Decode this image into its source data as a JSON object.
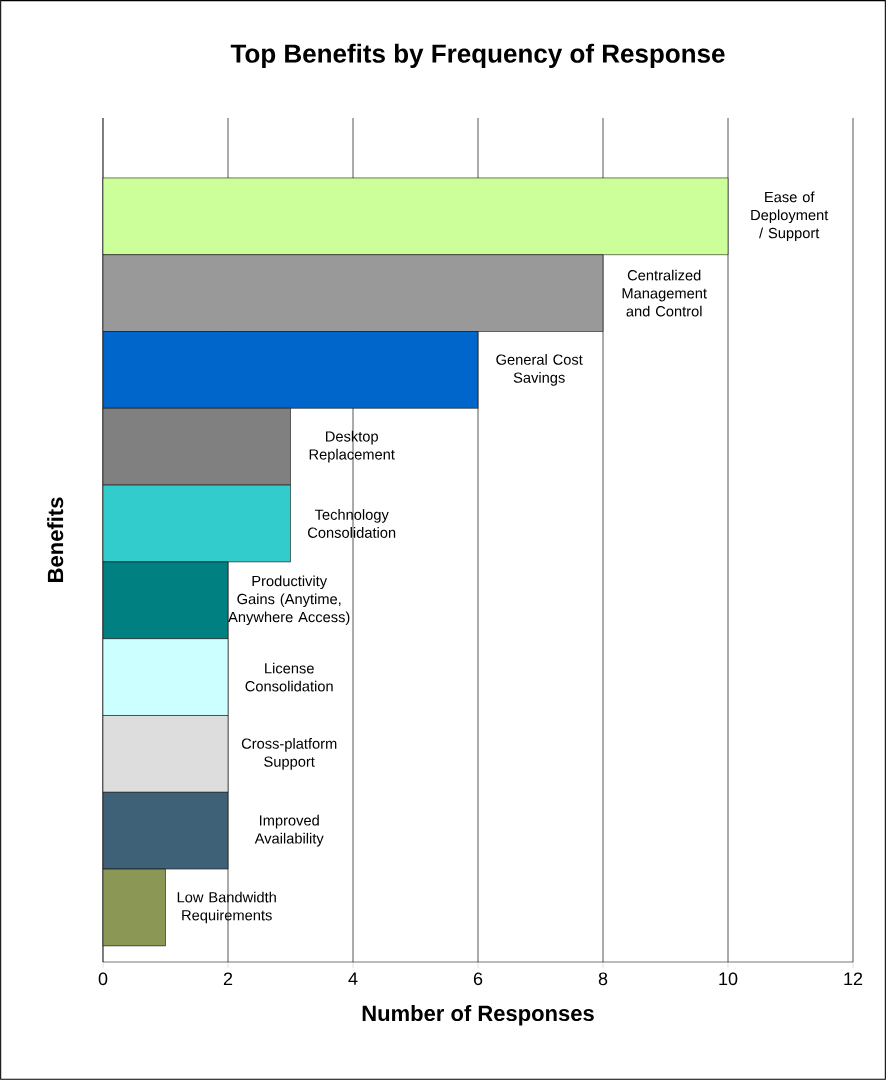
{
  "chart_data": {
    "type": "bar",
    "orientation": "horizontal",
    "title": "Top Benefits by Frequency of Response",
    "xlabel": "Number of Responses",
    "ylabel": "Benefits",
    "categories": [
      "Ease of Deployment / Support",
      "Centralized Management and Control",
      "General Cost Savings",
      "Desktop Replacement",
      "Technology Consolidation",
      "Productivity Gains (Anytime, Anywhere Access)",
      "License Consolidation",
      "Cross-platform Support",
      "Improved Availability",
      "Low Bandwidth Requirements"
    ],
    "values": [
      10,
      8,
      6,
      3,
      3,
      2,
      2,
      2,
      2,
      1
    ],
    "colors": [
      "#ccff99",
      "#999999",
      "#0066cc",
      "#808080",
      "#33cccc",
      "#008080",
      "#ccffff",
      "#dddddd",
      "#3f6177",
      "#8b9755"
    ],
    "xlim": [
      0,
      12
    ],
    "xticks": [
      0,
      2,
      4,
      6,
      8,
      10,
      12
    ],
    "grid": "x",
    "tick_labels": "x"
  }
}
